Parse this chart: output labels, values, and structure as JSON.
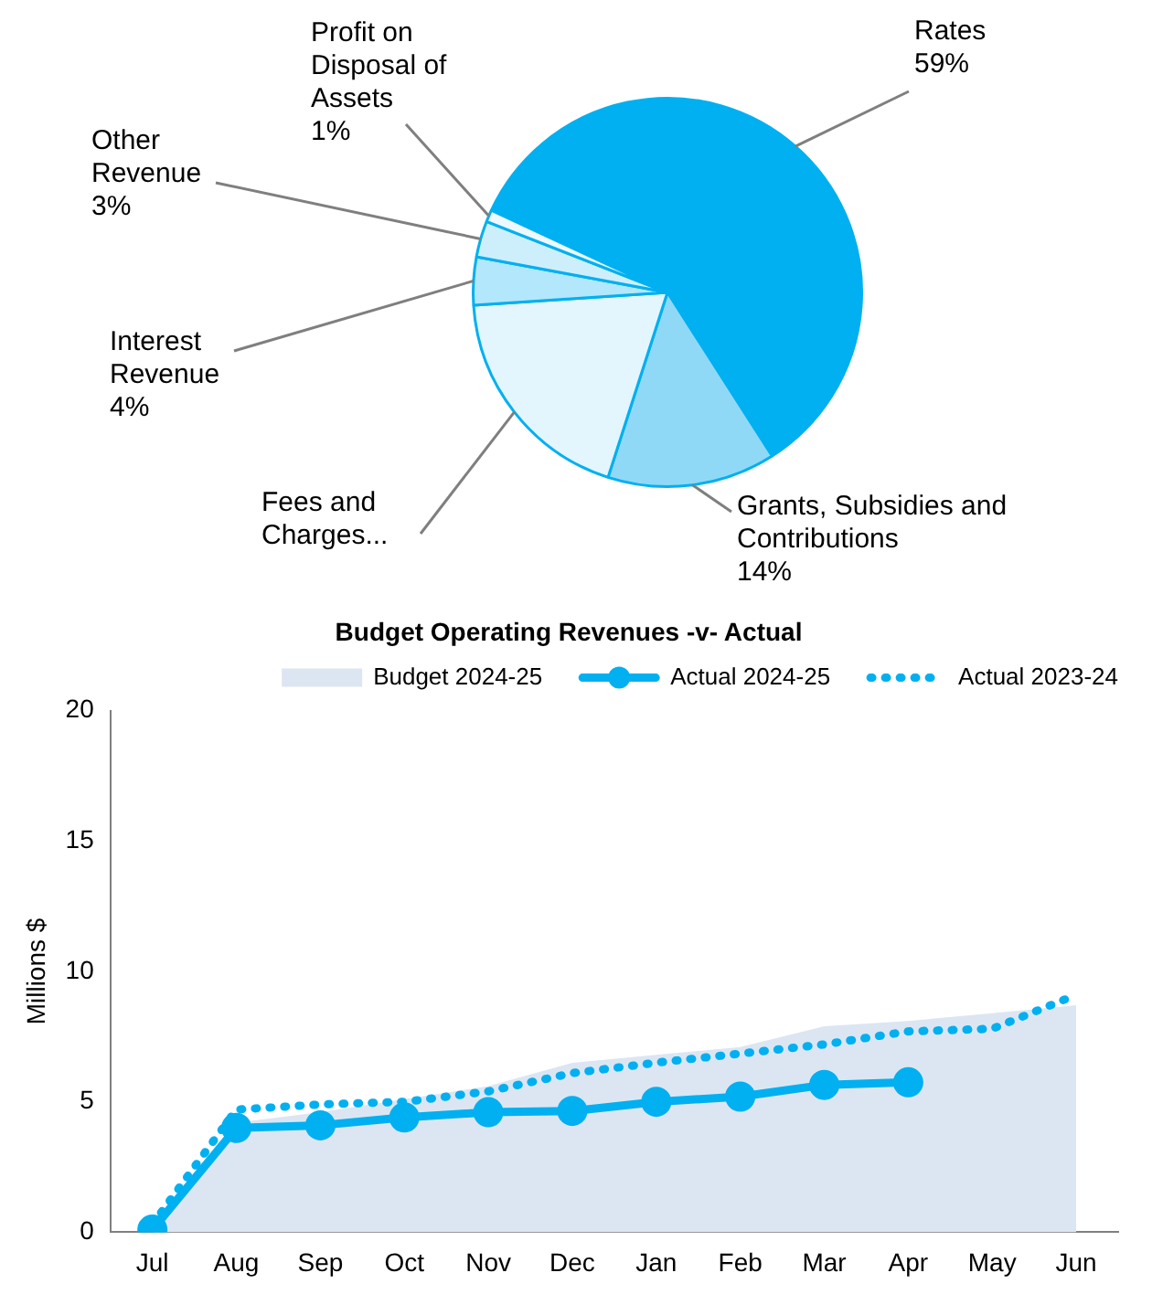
{
  "chart_data": [
    {
      "type": "pie",
      "categories": [
        "Rates",
        "Grants, Subsidies and Contributions",
        "Fees and Charges...",
        "Interest Revenue",
        "Other Revenue",
        "Profit on Disposal of Assets"
      ],
      "values": [
        59,
        14,
        19,
        4,
        3,
        1
      ],
      "value_labels": [
        "59%",
        "14%",
        null,
        "4%",
        "3%",
        "1%"
      ],
      "colors": [
        "#00b0f0",
        "#8fd9f7",
        "#e3f6fd",
        "#b3e7fb",
        "#cdeffc",
        "#edf9fe"
      ],
      "legend": false
    },
    {
      "type": "line",
      "title": "Budget Operating Revenues -v- Actual",
      "ylabel": "Millions $",
      "categories": [
        "Jul",
        "Aug",
        "Sep",
        "Oct",
        "Nov",
        "Dec",
        "Jan",
        "Feb",
        "Mar",
        "Apr",
        "May",
        "Jun"
      ],
      "series": [
        {
          "name": "Budget 2024-25",
          "type": "area",
          "color": "#dce6f2",
          "values": [
            0,
            4.2,
            4.6,
            5.1,
            5.6,
            6.5,
            6.8,
            7.1,
            7.9,
            8.1,
            8.4,
            8.7
          ]
        },
        {
          "name": "Actual 2024-25",
          "type": "line",
          "color": "#00b0f0",
          "marker": "circle",
          "line_style": "solid",
          "values": [
            0.1,
            4.0,
            4.1,
            4.4,
            4.6,
            4.65,
            5.0,
            5.2,
            5.65,
            5.75,
            null,
            null
          ]
        },
        {
          "name": "Actual 2023-24",
          "type": "line",
          "color": "#00b0f0",
          "marker": "none",
          "line_style": "dotted",
          "values": [
            0.3,
            4.7,
            4.9,
            5.0,
            5.4,
            6.1,
            6.5,
            6.85,
            7.2,
            7.7,
            7.8,
            9.1
          ]
        }
      ],
      "ylim": [
        0,
        20
      ],
      "yticks": [
        0,
        5,
        10,
        15,
        20
      ],
      "grid": false,
      "legend": "top"
    }
  ]
}
